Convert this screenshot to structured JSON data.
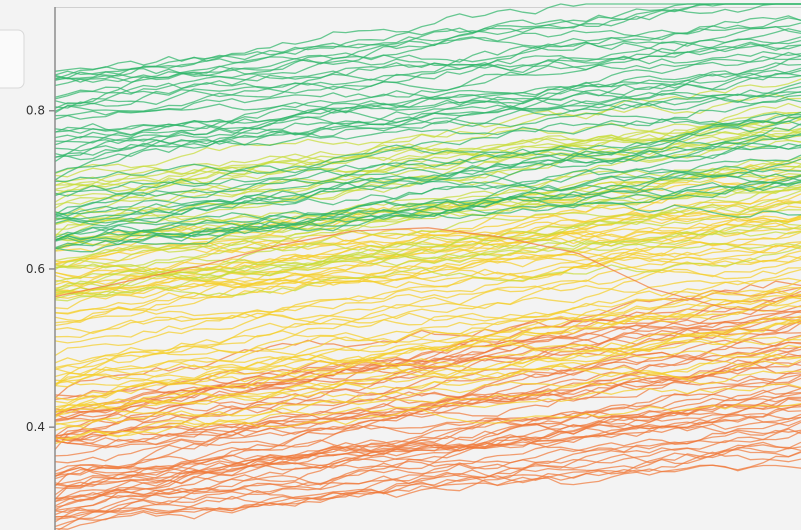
{
  "chart_data": {
    "type": "line",
    "title": "",
    "xlabel": "",
    "ylabel": "",
    "ylim": [
      0.27,
      0.94
    ],
    "xlim": [
      0,
      1
    ],
    "y_ticks": [
      {
        "value": 0.8,
        "label": "0.8"
      },
      {
        "value": 0.6,
        "label": "0.6"
      },
      {
        "value": 0.4,
        "label": "0.4"
      }
    ],
    "grid": false,
    "legend": "none",
    "colors": {
      "green": "#2fb56a",
      "yellow_green": "#c7dd3a",
      "yellow": "#f5cf2a",
      "orange": "#f07a3c"
    },
    "series_groups": [
      {
        "color": "green",
        "count": 50,
        "start_min": 0.62,
        "start_max": 0.86,
        "rise_min": 0.04,
        "rise_max": 0.14
      },
      {
        "color": "yellow_green",
        "count": 35,
        "start_min": 0.56,
        "start_max": 0.72,
        "rise_min": 0.05,
        "rise_max": 0.14
      },
      {
        "color": "yellow",
        "count": 55,
        "start_min": 0.38,
        "start_max": 0.63,
        "rise_min": 0.04,
        "rise_max": 0.16
      },
      {
        "color": "orange",
        "count": 55,
        "start_min": 0.27,
        "start_max": 0.44,
        "rise_min": 0.05,
        "rise_max": 0.18
      }
    ],
    "highlight_series": [
      {
        "color": "orange",
        "values": [
          0.565,
          0.585,
          0.605,
          0.63,
          0.648,
          0.652,
          0.64,
          0.62,
          0.575,
          0.55,
          0.545
        ]
      }
    ]
  }
}
